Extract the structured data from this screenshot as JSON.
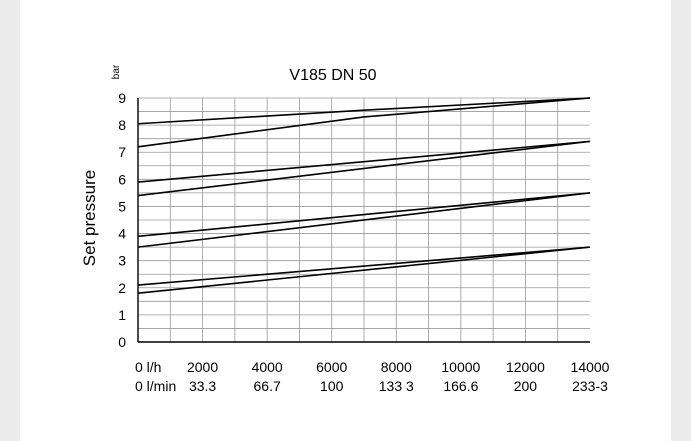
{
  "chart_data": {
    "type": "line",
    "title": "V185 DN 50",
    "ylabel": "Set pressure",
    "yunit": "bar",
    "x_ticks_lh": [
      "0 l/h",
      "2000",
      "4000",
      "6000",
      "8000",
      "10000",
      "12000",
      "14000"
    ],
    "x_ticks_lmin": [
      "0 l/min",
      "33.3",
      "66.7",
      "100",
      "133 3",
      "166.6",
      "200",
      "233-3"
    ],
    "y_ticks": [
      "0",
      "1",
      "2",
      "3",
      "4",
      "5",
      "6",
      "7",
      "8",
      "9"
    ],
    "xlim": [
      0,
      14000
    ],
    "ylim": [
      0,
      9
    ],
    "grid": true,
    "series": [
      {
        "x": [
          0,
          7000,
          14000
        ],
        "y": [
          8.05,
          8.55,
          9.0
        ]
      },
      {
        "x": [
          0,
          7000,
          14000
        ],
        "y": [
          7.2,
          8.3,
          9.0
        ]
      },
      {
        "x": [
          0,
          14000
        ],
        "y": [
          5.9,
          7.4
        ]
      },
      {
        "x": [
          0,
          14000
        ],
        "y": [
          5.4,
          7.4
        ]
      },
      {
        "x": [
          0,
          14000
        ],
        "y": [
          3.9,
          5.5
        ]
      },
      {
        "x": [
          0,
          14000
        ],
        "y": [
          3.5,
          5.5
        ]
      },
      {
        "x": [
          0,
          14000
        ],
        "y": [
          2.1,
          3.5
        ]
      },
      {
        "x": [
          0,
          14000
        ],
        "y": [
          1.8,
          3.5
        ]
      }
    ],
    "series_color": "#000000",
    "grid_color": "#9a9a9a"
  }
}
